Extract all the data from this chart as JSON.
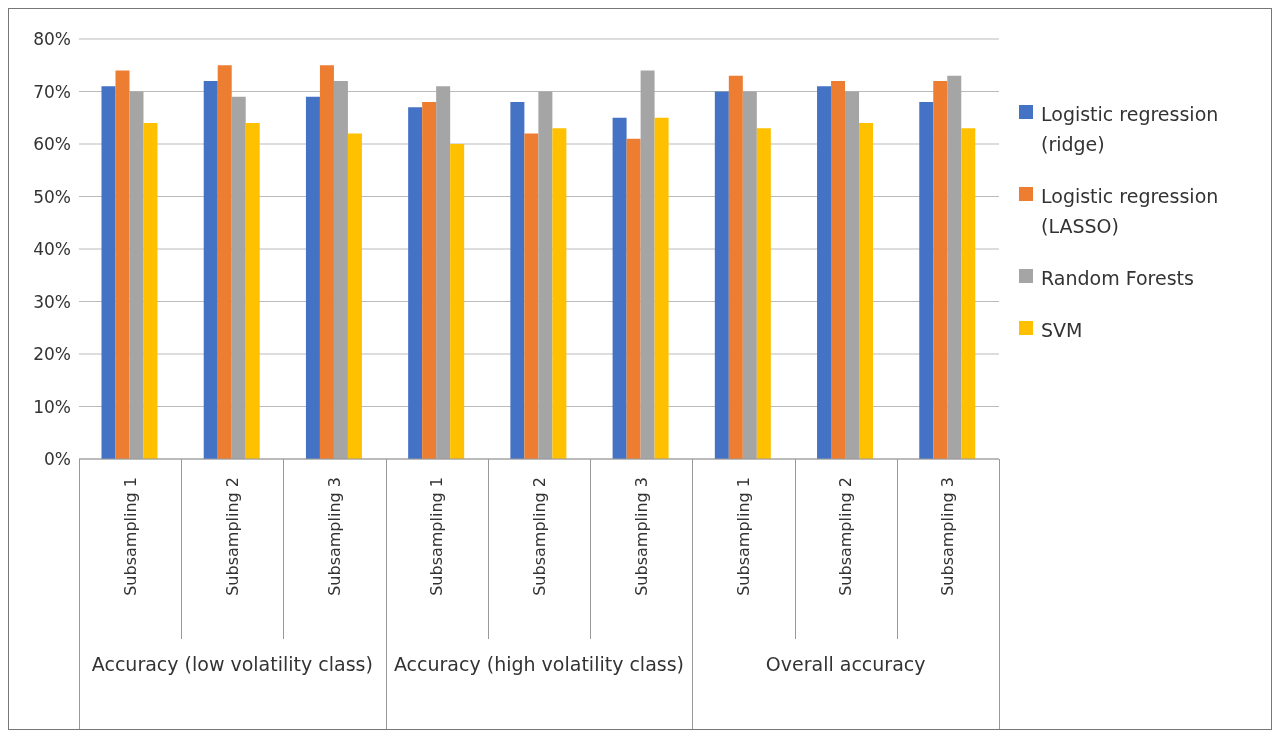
{
  "chart_data": {
    "type": "bar",
    "categories": [
      "Subsampling 1",
      "Subsampling 2",
      "Subsampling 3",
      "Subsampling 1",
      "Subsampling 2",
      "Subsampling 3",
      "Subsampling 1",
      "Subsampling 2",
      "Subsampling 3"
    ],
    "series": [
      {
        "name": "Logistic regression (ridge)",
        "color": "#4472c4",
        "values": [
          71,
          72,
          69,
          67,
          68,
          65,
          70,
          71,
          68
        ]
      },
      {
        "name": "Logistic regression (LASSO)",
        "color": "#ed7d31",
        "values": [
          74,
          75,
          75,
          68,
          62,
          61,
          73,
          72,
          72
        ]
      },
      {
        "name": "Random Forests",
        "color": "#a5a5a5",
        "values": [
          70,
          69,
          72,
          71,
          70,
          74,
          70,
          70,
          73
        ]
      },
      {
        "name": "SVM",
        "color": "#ffc000",
        "values": [
          64,
          64,
          62,
          60,
          63,
          65,
          63,
          64,
          63
        ]
      }
    ],
    "annotations": [
      "Accuracy (low volatility class)",
      "Accuracy (high volatility class)",
      "Overall accuracy"
    ],
    "ylim": [
      0,
      80
    ],
    "yticks": [
      {
        "value": 0,
        "label": "0%"
      },
      {
        "value": 10,
        "label": "10%"
      },
      {
        "value": 20,
        "label": "20%"
      },
      {
        "value": 30,
        "label": "30%"
      },
      {
        "value": 40,
        "label": "40%"
      },
      {
        "value": 50,
        "label": "50%"
      },
      {
        "value": 60,
        "label": "60%"
      },
      {
        "value": 70,
        "label": "70%"
      },
      {
        "value": 80,
        "label": "80%"
      }
    ],
    "grid": "y",
    "legend": "right"
  }
}
